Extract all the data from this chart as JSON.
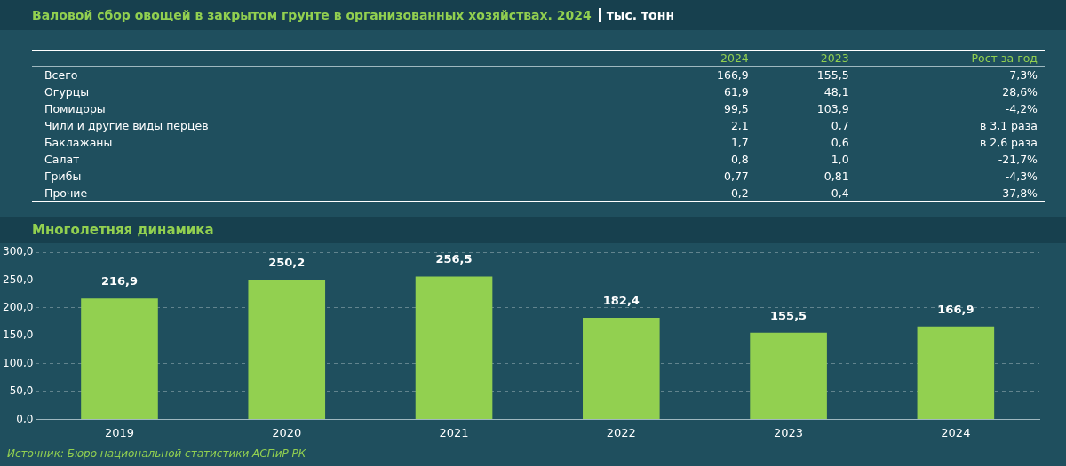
{
  "chart_data": [
    {
      "type": "other",
      "title": "Валовой сбор овощей в закрытом грунте в организованных хозяйствах. 2024",
      "subtitle": "тыс. тонн",
      "categories": [
        "Всего",
        "Огурцы",
        "Помидоры",
        "Чили и другие виды перцев",
        "Баклажаны",
        "Салат",
        "Грибы",
        "Прочие"
      ],
      "series": [
        {
          "name": "2024",
          "values": [
            166.9,
            61.9,
            99.5,
            2.1,
            1.7,
            0.8,
            0.77,
            0.2
          ],
          "value_labels": [
            "166,9",
            "61,9",
            "99,5",
            "2,1",
            "1,7",
            "0,8",
            "0,77",
            "0,2"
          ]
        },
        {
          "name": "2023",
          "values": [
            155.5,
            48.1,
            103.9,
            0.7,
            0.6,
            1.0,
            0.81,
            0.4
          ],
          "value_labels": [
            "155,5",
            "48,1",
            "103,9",
            "0,7",
            "0,6",
            "1,0",
            "0,81",
            "0,4"
          ]
        },
        {
          "name": "Рост за год",
          "values": [
            7.3,
            28.6,
            -4.2,
            null,
            null,
            -21.7,
            -4.3,
            -37.8
          ],
          "value_labels": [
            "7,3%",
            "28,6%",
            "-4,2%",
            "в 3,1 раза",
            "в 2,6 раза",
            "-21,7%",
            "-4,3%",
            "-37,8%"
          ]
        }
      ]
    },
    {
      "type": "bar",
      "title": "Многолетняя динамика",
      "categories": [
        "2019",
        "2020",
        "2021",
        "2022",
        "2023",
        "2024"
      ],
      "values": [
        216.9,
        250.2,
        256.5,
        182.4,
        155.5,
        166.9
      ],
      "value_labels": [
        "216,9",
        "250,2",
        "256,5",
        "182,4",
        "155,5",
        "166,9"
      ],
      "color": "#92d050",
      "ylim": [
        0,
        300
      ],
      "yticks": [
        {
          "value": 0,
          "label": "0,0"
        },
        {
          "value": 50,
          "label": "50,0"
        },
        {
          "value": 100,
          "label": "100,0"
        },
        {
          "value": 150,
          "label": "150,0"
        },
        {
          "value": 200,
          "label": "200,0"
        },
        {
          "value": 250,
          "label": "250,0"
        },
        {
          "value": 300,
          "label": "300,0"
        }
      ],
      "grid": "y",
      "legend": false,
      "annotations": [
        "Источник: Бюро национальной статистики АСПиР РК"
      ]
    }
  ]
}
